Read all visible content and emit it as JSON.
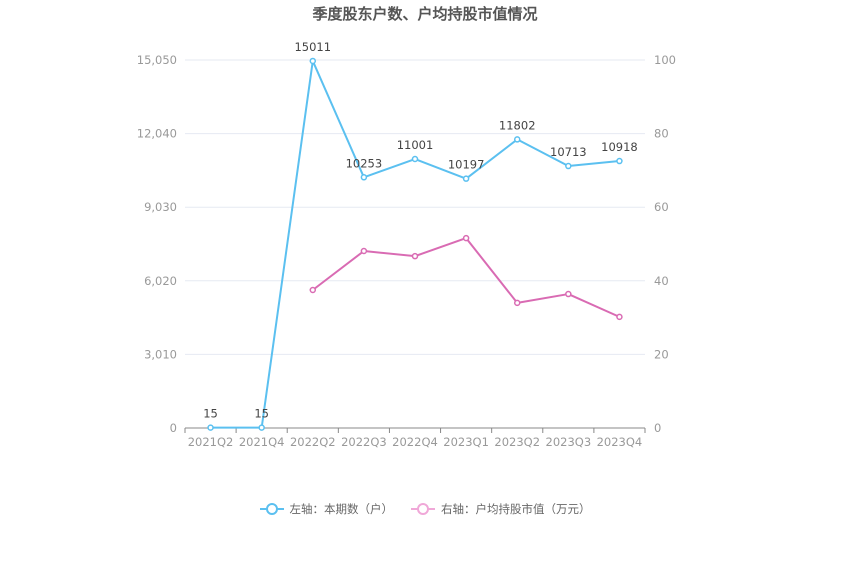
{
  "title": "季度股东户数、户均持股市值情况",
  "legend": {
    "left": {
      "label": "左轴：本期数（户）",
      "color": "#5bc0f0"
    },
    "right": {
      "label": "右轴：户均持股市值（万元）",
      "color": "#e07fc0"
    }
  },
  "axes": {
    "left_ticks": [
      "0",
      "3,010",
      "6,020",
      "9,030",
      "12,040",
      "15,050"
    ],
    "right_ticks": [
      "0",
      "20",
      "40",
      "60",
      "80",
      "100"
    ]
  },
  "chart_data": {
    "type": "line",
    "title": "季度股东户数、户均持股市值情况",
    "categories": [
      "2021Q2",
      "2021Q4",
      "2022Q2",
      "2022Q3",
      "2022Q4",
      "2023Q1",
      "2023Q2",
      "2023Q3",
      "2023Q4"
    ],
    "series": [
      {
        "name": "左轴：本期数（户）",
        "axis": "left",
        "color": "#5bc0f0",
        "values": [
          15,
          15,
          15011,
          10253,
          11001,
          10197,
          11802,
          10713,
          10918
        ],
        "labels_shown": true
      },
      {
        "name": "右轴：户均持股市值（万元）",
        "axis": "right",
        "color": "#d96bb3",
        "values": [
          null,
          null,
          37.5,
          48.1,
          46.7,
          51.6,
          34.0,
          36.4,
          30.2
        ],
        "labels_shown": false
      }
    ],
    "ylim_left": [
      0,
      15050
    ],
    "ylim_right": [
      0,
      100
    ],
    "left_ticks": [
      0,
      3010,
      6020,
      9030,
      12040,
      15050
    ],
    "right_ticks": [
      0,
      20,
      40,
      60,
      80,
      100
    ],
    "grid": true,
    "legend_position": "bottom",
    "xlabel": "",
    "ylabel": ""
  }
}
